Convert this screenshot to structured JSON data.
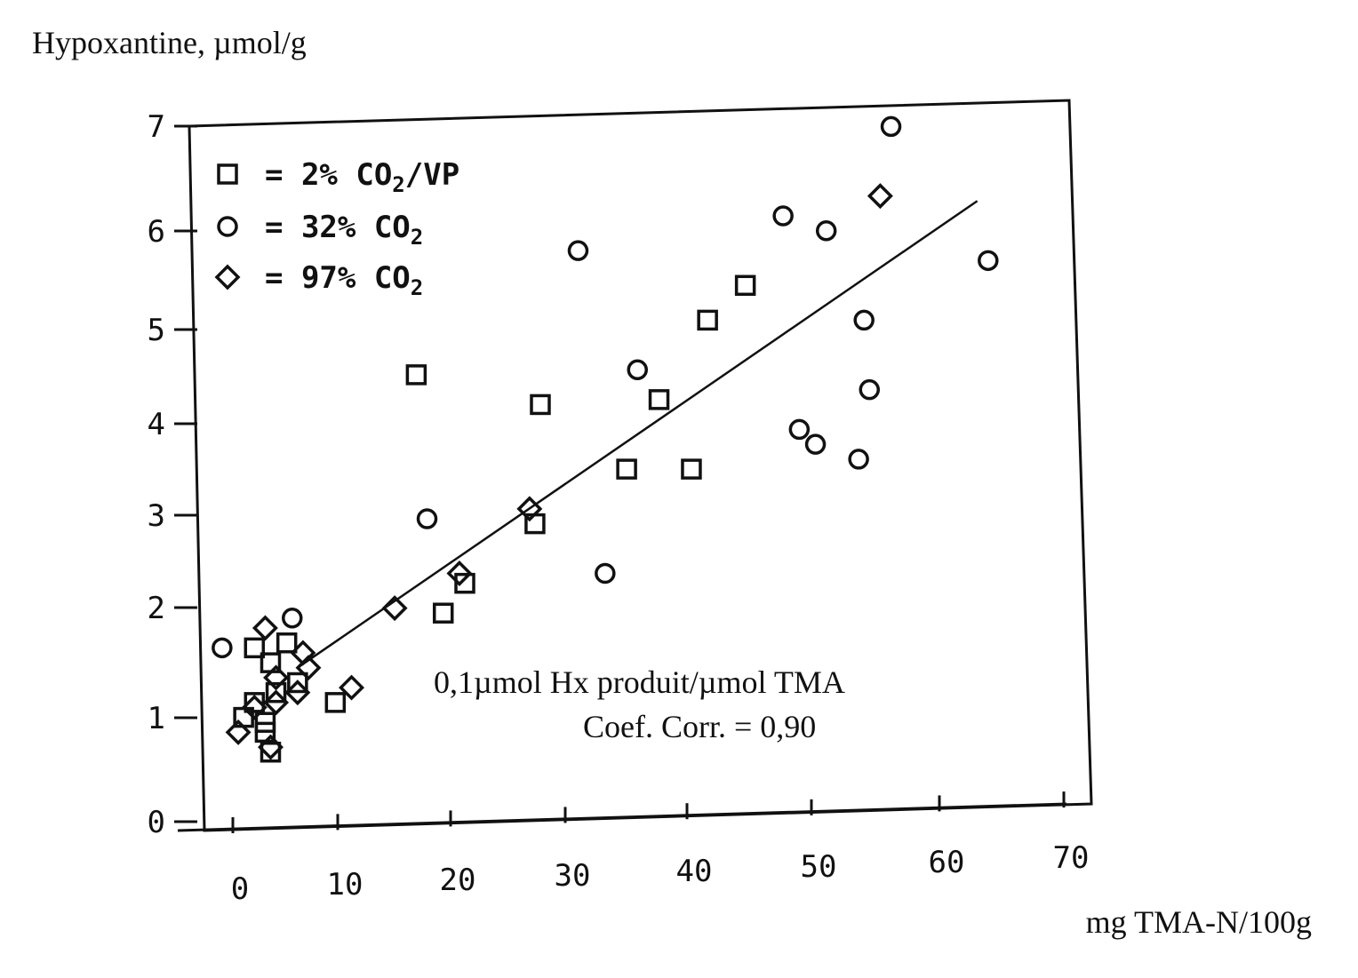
{
  "chart_data": {
    "type": "scatter",
    "ylabel": "Hypoxantine, µmol/g",
    "xlabel": "mg TMA-N/100g",
    "xlim": [
      0,
      70
    ],
    "ylim": [
      0,
      7
    ],
    "x_ticks": [
      0,
      10,
      20,
      30,
      40,
      50,
      60,
      70
    ],
    "y_ticks": [
      0,
      1,
      2,
      3,
      4,
      5,
      6,
      7
    ],
    "legend_position": "top-left",
    "legend": [
      {
        "symbol": "square",
        "label": "=  2% CO",
        "sub": "2",
        "suffix": "/VP"
      },
      {
        "symbol": "circle",
        "label": "= 32% CO",
        "sub": "2",
        "suffix": ""
      },
      {
        "symbol": "diamond",
        "label": "= 97% CO",
        "sub": "2",
        "suffix": ""
      }
    ],
    "annotations": [
      "0,1µmol Hx produit/µmol TMA",
      "Coef. Corr. = 0,90"
    ],
    "series": [
      {
        "symbol": "square",
        "points": [
          [
            2,
            1.75
          ],
          [
            3.5,
            1.6
          ],
          [
            4,
            1.3
          ],
          [
            5,
            1.8
          ],
          [
            6,
            1.4
          ],
          [
            1,
            1.05
          ],
          [
            2,
            1.2
          ],
          [
            3,
            1.0
          ],
          [
            3,
            0.9
          ],
          [
            3.5,
            0.7
          ],
          [
            9.5,
            1.2
          ],
          [
            17,
            4.5
          ],
          [
            19.5,
            2.1
          ],
          [
            21.5,
            2.4
          ],
          [
            28,
            3.0
          ],
          [
            28.5,
            4.2
          ],
          [
            36.5,
            3.55
          ],
          [
            39.5,
            4.25
          ],
          [
            42.5,
            3.55
          ],
          [
            44,
            5.05
          ],
          [
            47.5,
            5.4
          ]
        ]
      },
      {
        "symbol": "circle",
        "points": [
          [
            -1,
            1.75
          ],
          [
            5.5,
            2.05
          ],
          [
            18,
            3.05
          ],
          [
            32,
            5.75
          ],
          [
            34.5,
            2.5
          ],
          [
            37.5,
            4.55
          ],
          [
            51,
            6.1
          ],
          [
            52.5,
            3.95
          ],
          [
            54,
            3.8
          ],
          [
            55,
            5.95
          ],
          [
            58,
            3.65
          ],
          [
            58.5,
            5.05
          ],
          [
            59,
            4.35
          ],
          [
            61,
            7.0
          ],
          [
            70,
            5.65
          ]
        ]
      },
      {
        "symbol": "diamond",
        "points": [
          [
            0.5,
            0.9
          ],
          [
            3,
            1.95
          ],
          [
            4,
            1.45
          ],
          [
            6.5,
            1.7
          ],
          [
            7,
            1.55
          ],
          [
            6,
            1.3
          ],
          [
            4,
            1.2
          ],
          [
            2,
            1.15
          ],
          [
            3.5,
            0.75
          ],
          [
            11,
            1.35
          ],
          [
            15,
            2.15
          ],
          [
            21,
            2.5
          ],
          [
            27.5,
            3.15
          ],
          [
            60,
            6.3
          ]
        ]
      }
    ],
    "fit_line": [
      [
        6,
        1.55
      ],
      [
        69,
        6.25
      ]
    ]
  }
}
